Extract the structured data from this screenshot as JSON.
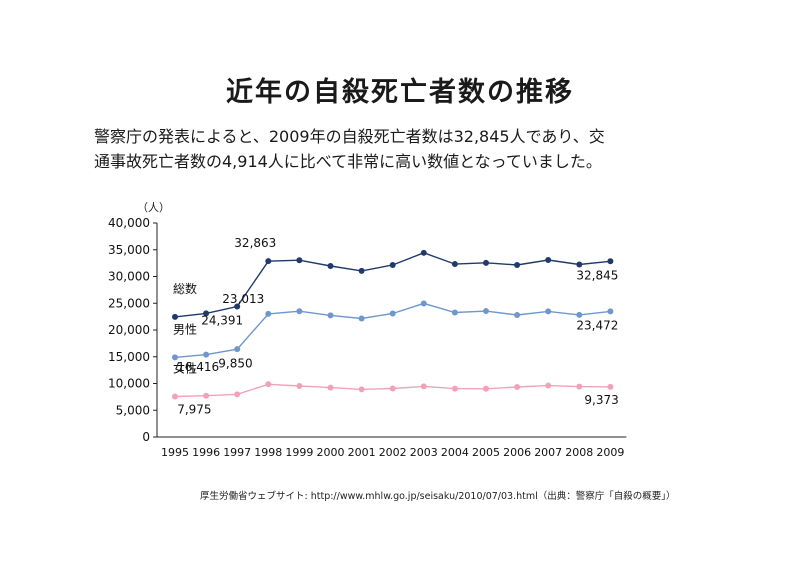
{
  "title": "近年の自殺死亡者数の推移",
  "description": [
    "警察庁の発表によると、2009年の自殺死亡者数は32,845人であり、交",
    "通事故死亡者数の4,914人に比べて非常に高い数値となっていました。"
  ],
  "source": "厚生労働省ウェブサイト: http://www.mhlw.go.jp/seisaku/2010/07/03.html（出典：警察庁「自殺の概要」）",
  "chart_data": {
    "type": "line",
    "title": "",
    "xlabel": "",
    "ylabel": "（人）",
    "ylim": [
      0,
      40000
    ],
    "yticks": [
      0,
      5000,
      10000,
      15000,
      20000,
      25000,
      30000,
      35000,
      40000
    ],
    "ytick_labels": [
      "0",
      "5,000",
      "10,000",
      "15,000",
      "20,000",
      "25,000",
      "30,000",
      "35,000",
      "40,000"
    ],
    "grid": false,
    "legend": "inline labels",
    "categories": [
      "1995",
      "1996",
      "1997",
      "1998",
      "1999",
      "2000",
      "2001",
      "2002",
      "2003",
      "2004",
      "2005",
      "2006",
      "2007",
      "2008",
      "2009"
    ],
    "series": [
      {
        "name": "総数",
        "color": "#1f3a6b",
        "values": [
          22445,
          23104,
          24391,
          32863,
          33048,
          31957,
          31042,
          32143,
          34427,
          32325,
          32552,
          32155,
          33093,
          32249,
          32845
        ]
      },
      {
        "name": "男性",
        "color": "#6f97cc",
        "values": [
          14874,
          15393,
          16416,
          23013,
          23512,
          22727,
          22144,
          23080,
          24963,
          23272,
          23540,
          22813,
          23478,
          22831,
          23472
        ]
      },
      {
        "name": "女性",
        "color": "#f0a3b8",
        "values": [
          7571,
          7711,
          7975,
          9850,
          9536,
          9230,
          8898,
          9063,
          9464,
          9053,
          9012,
          9342,
          9615,
          9418,
          9373
        ]
      }
    ],
    "data_labels": [
      {
        "series": 0,
        "index": 2,
        "text": "24,391"
      },
      {
        "series": 0,
        "index": 3,
        "text": "32,863"
      },
      {
        "series": 0,
        "index": 14,
        "text": "32,845"
      },
      {
        "series": 1,
        "index": 2,
        "text": "16,416"
      },
      {
        "series": 1,
        "index": 3,
        "text": "23,013"
      },
      {
        "series": 1,
        "index": 14,
        "text": "23,472"
      },
      {
        "series": 2,
        "index": 2,
        "text": "7,975"
      },
      {
        "series": 2,
        "index": 3,
        "text": "9,850"
      },
      {
        "series": 2,
        "index": 14,
        "text": "9,373"
      }
    ]
  }
}
